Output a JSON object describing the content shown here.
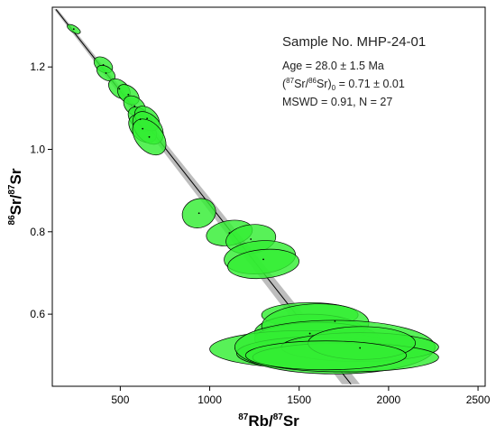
{
  "chart_data": {
    "type": "scatter",
    "title": "",
    "xlabel_parts": {
      "sup": "87",
      "main": "Rb/",
      "sup2": "87",
      "end": "Sr"
    },
    "ylabel_parts": {
      "sup": "86",
      "main": "Sr/",
      "sup2": "87",
      "end": "Sr"
    },
    "xlim": [
      120,
      2540
    ],
    "ylim": [
      0.425,
      1.345
    ],
    "x_ticks": [
      500,
      1000,
      1500,
      2000,
      2500
    ],
    "x_tick_labels": [
      "500",
      "1000",
      "1500",
      "2000",
      "2500"
    ],
    "y_ticks": [
      0.6,
      0.8,
      1.0,
      1.2
    ],
    "y_tick_labels": [
      "0.6",
      "0.8",
      "1.0",
      "1.2"
    ],
    "grid": false,
    "annotation": {
      "sample": "Sample No. MHP-24-01",
      "age": "Age = 28.0 ± 1.5 Ma",
      "initial_prefix": "(",
      "initial_sup1": "87",
      "initial_mid": "Sr/",
      "initial_sup2": "86",
      "initial_end": "Sr)",
      "initial_sub": "0",
      "initial_value": " = 0.71 ± 0.01",
      "mswd": "MSWD = 0.91, N = 27"
    },
    "isochron": {
      "start": [
        140,
        1.34
      ],
      "end": [
        1790,
        0.43
      ],
      "band_color": "#bdbdbd",
      "line_color": "#000000"
    },
    "ellipse_fill": "#33ee33",
    "ellipse_stroke": "#000000",
    "ellipses": [
      {
        "x": 240,
        "y": 1.292,
        "rx": 18,
        "ry": 0.018,
        "angle": -60
      },
      {
        "x": 405,
        "y": 1.205,
        "rx": 38,
        "ry": 0.025,
        "angle": -55
      },
      {
        "x": 420,
        "y": 1.185,
        "rx": 35,
        "ry": 0.025,
        "angle": -55
      },
      {
        "x": 495,
        "y": 1.147,
        "rx": 45,
        "ry": 0.03,
        "angle": -50
      },
      {
        "x": 545,
        "y": 1.133,
        "rx": 45,
        "ry": 0.03,
        "angle": -50
      },
      {
        "x": 580,
        "y": 1.105,
        "rx": 48,
        "ry": 0.03,
        "angle": -50
      },
      {
        "x": 612,
        "y": 1.073,
        "rx": 52,
        "ry": 0.035,
        "angle": -45
      },
      {
        "x": 625,
        "y": 1.05,
        "rx": 60,
        "ry": 0.04,
        "angle": -45
      },
      {
        "x": 650,
        "y": 1.075,
        "rx": 55,
        "ry": 0.035,
        "angle": -45
      },
      {
        "x": 655,
        "y": 1.052,
        "rx": 70,
        "ry": 0.045,
        "angle": -40
      },
      {
        "x": 662,
        "y": 1.03,
        "rx": 75,
        "ry": 0.05,
        "angle": -40
      },
      {
        "x": 940,
        "y": 0.845,
        "rx": 95,
        "ry": 0.035,
        "angle": -20
      },
      {
        "x": 1110,
        "y": 0.797,
        "rx": 130,
        "ry": 0.03,
        "angle": -10
      },
      {
        "x": 1230,
        "y": 0.782,
        "rx": 140,
        "ry": 0.035,
        "angle": -8
      },
      {
        "x": 1280,
        "y": 0.738,
        "rx": 200,
        "ry": 0.04,
        "angle": -5
      },
      {
        "x": 1300,
        "y": 0.722,
        "rx": 200,
        "ry": 0.035,
        "angle": -5
      },
      {
        "x": 1560,
        "y": 0.598,
        "rx": 270,
        "ry": 0.03,
        "angle": 0
      },
      {
        "x": 1560,
        "y": 0.555,
        "rx": 310,
        "ry": 0.045,
        "angle": 0
      },
      {
        "x": 1590,
        "y": 0.575,
        "rx": 300,
        "ry": 0.05,
        "angle": -2
      },
      {
        "x": 1600,
        "y": 0.54,
        "rx": 350,
        "ry": 0.04,
        "angle": 0
      },
      {
        "x": 1520,
        "y": 0.515,
        "rx": 520,
        "ry": 0.045,
        "angle": 0
      },
      {
        "x": 1600,
        "y": 0.505,
        "rx": 450,
        "ry": 0.04,
        "angle": 0
      },
      {
        "x": 1700,
        "y": 0.52,
        "rx": 560,
        "ry": 0.065,
        "angle": 0
      },
      {
        "x": 1840,
        "y": 0.52,
        "rx": 440,
        "ry": 0.035,
        "angle": 0
      },
      {
        "x": 1760,
        "y": 0.495,
        "rx": 520,
        "ry": 0.035,
        "angle": 0
      },
      {
        "x": 1850,
        "y": 0.53,
        "rx": 300,
        "ry": 0.04,
        "angle": 0
      },
      {
        "x": 1650,
        "y": 0.5,
        "rx": 450,
        "ry": 0.035,
        "angle": 0
      }
    ],
    "dots": [
      {
        "x": 240,
        "y": 1.292
      },
      {
        "x": 405,
        "y": 1.205
      },
      {
        "x": 420,
        "y": 1.185
      },
      {
        "x": 495,
        "y": 1.147
      },
      {
        "x": 545,
        "y": 1.133
      },
      {
        "x": 580,
        "y": 1.105
      },
      {
        "x": 612,
        "y": 1.073
      },
      {
        "x": 625,
        "y": 1.05
      },
      {
        "x": 650,
        "y": 1.075
      },
      {
        "x": 662,
        "y": 1.03
      },
      {
        "x": 940,
        "y": 0.845
      },
      {
        "x": 1110,
        "y": 0.797
      },
      {
        "x": 1230,
        "y": 0.782
      },
      {
        "x": 1300,
        "y": 0.733
      },
      {
        "x": 1560,
        "y": 0.553
      },
      {
        "x": 1700,
        "y": 0.583
      },
      {
        "x": 1840,
        "y": 0.518
      }
    ]
  }
}
